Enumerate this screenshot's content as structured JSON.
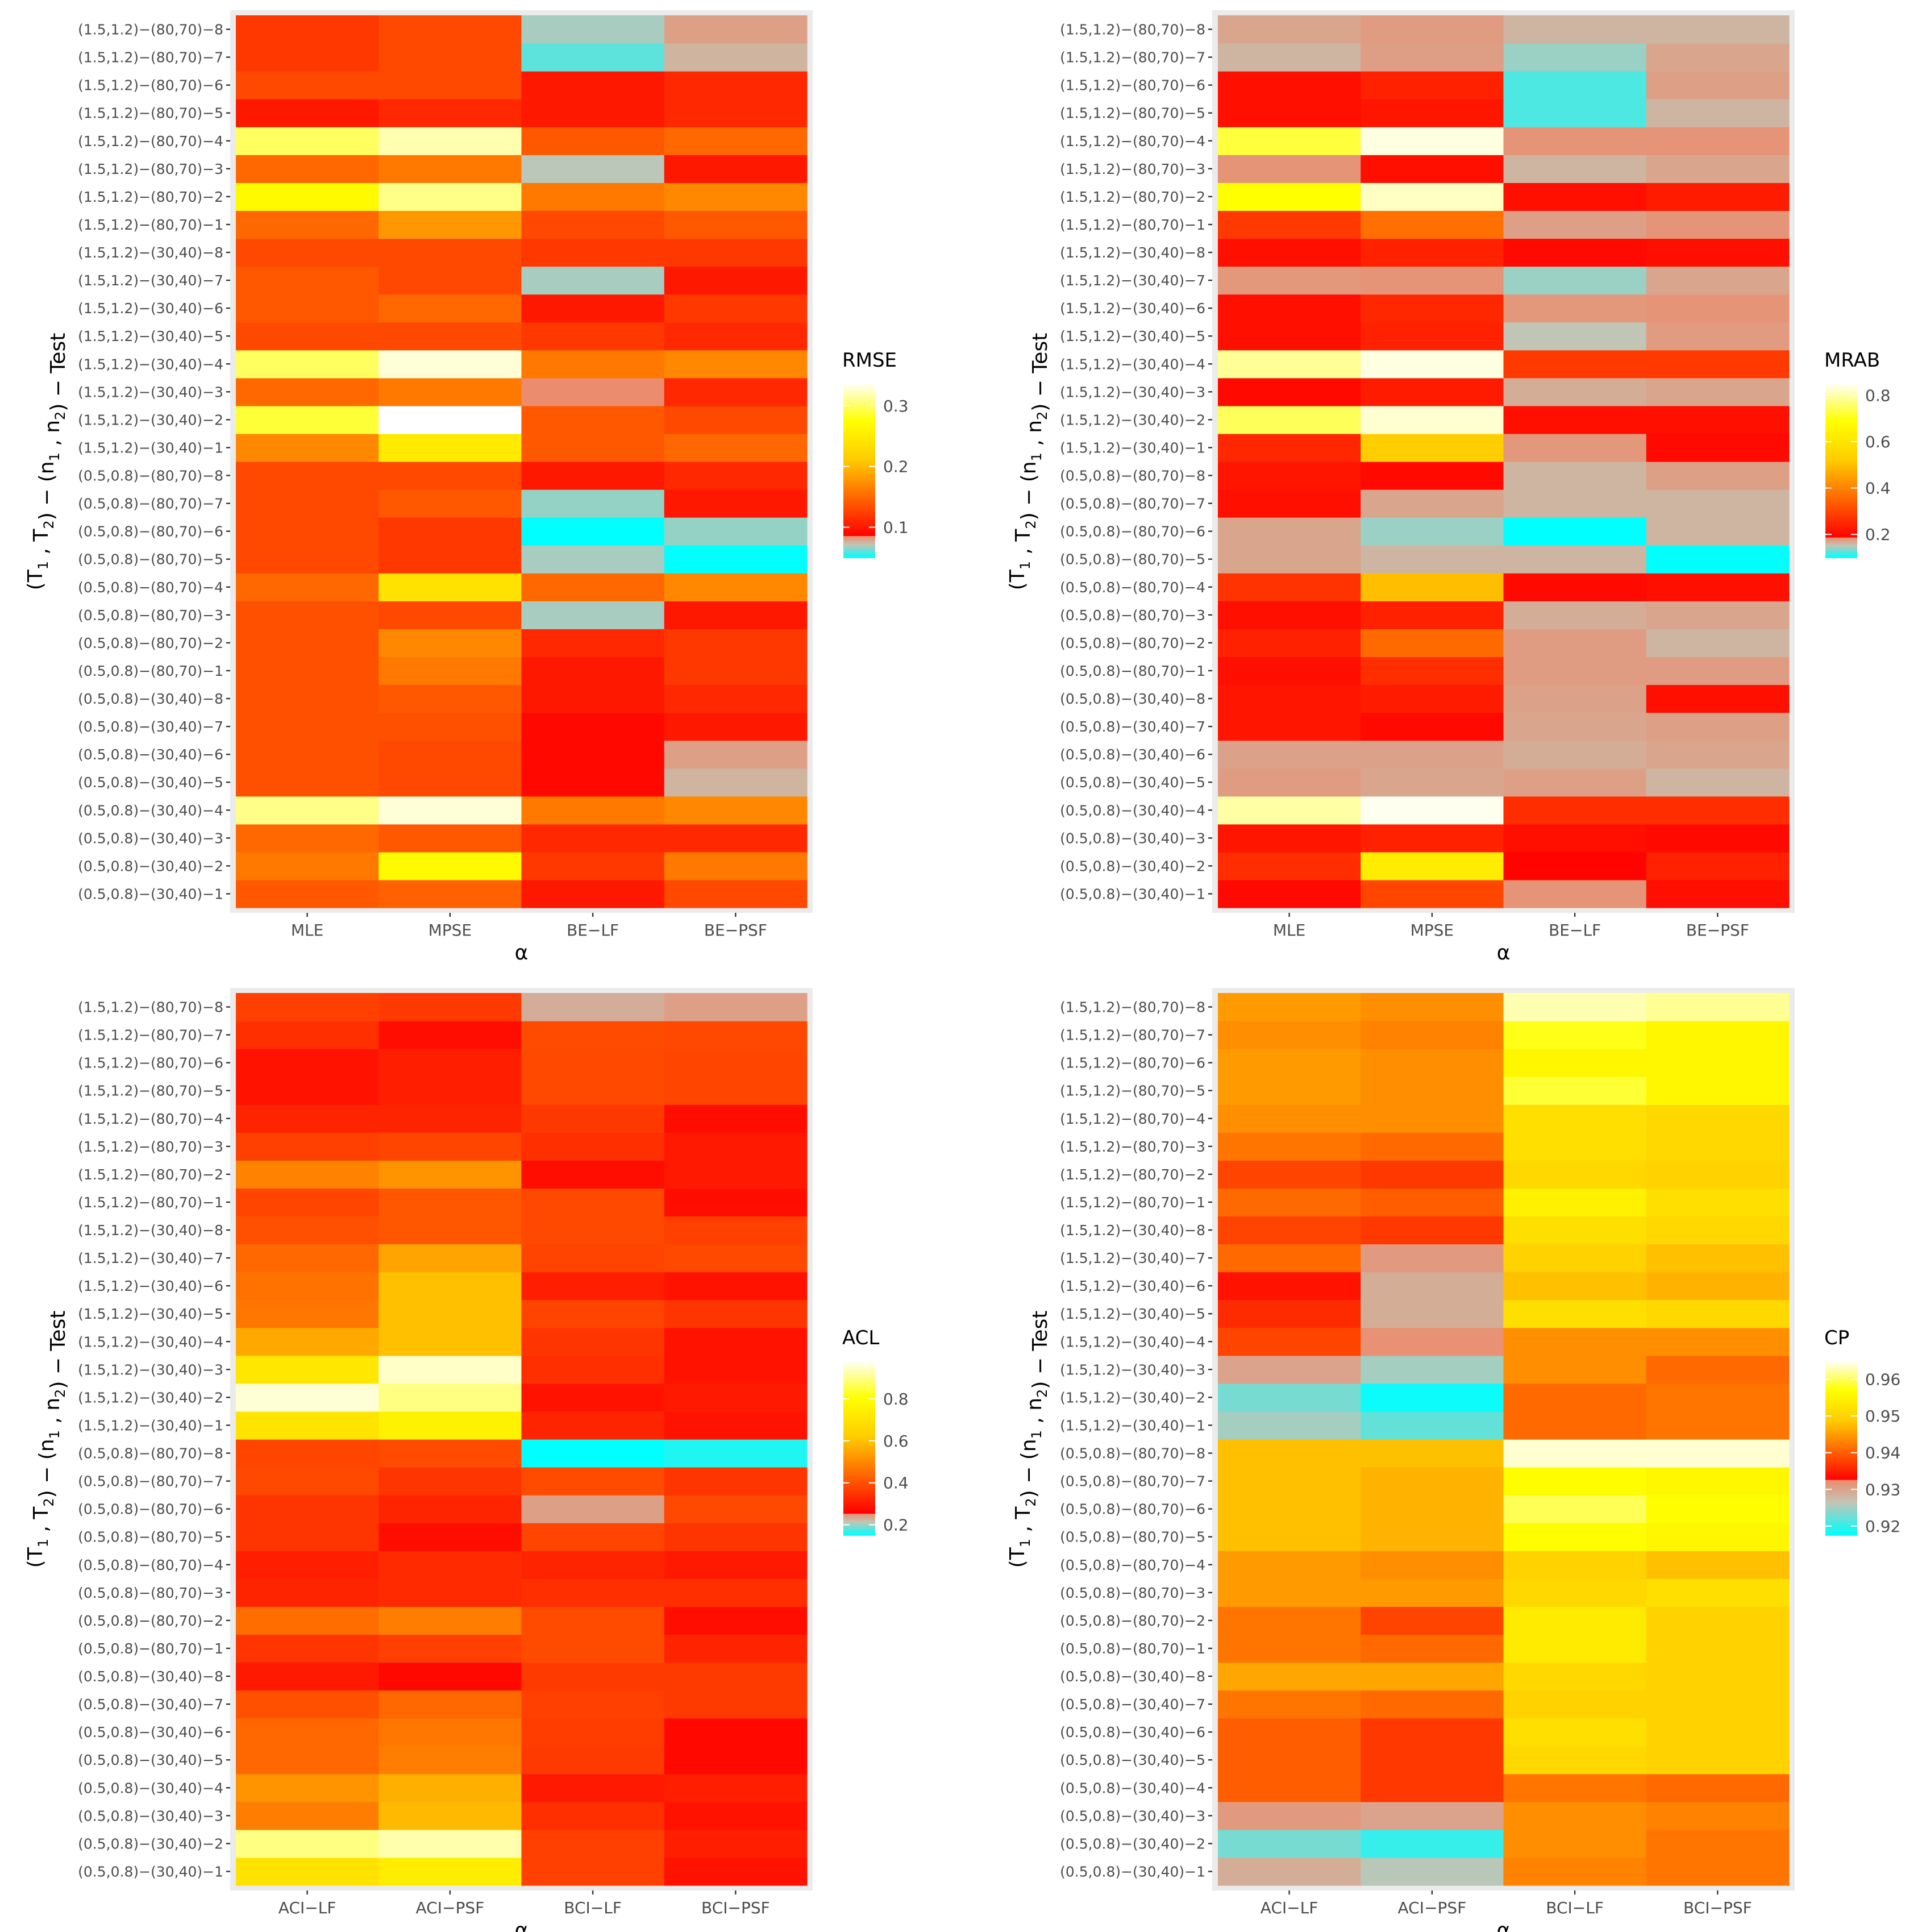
{
  "rows": [
    "(0.5,0.8)−(30,40)−1",
    "(0.5,0.8)−(30,40)−2",
    "(0.5,0.8)−(30,40)−3",
    "(0.5,0.8)−(30,40)−4",
    "(0.5,0.8)−(30,40)−5",
    "(0.5,0.8)−(30,40)−6",
    "(0.5,0.8)−(30,40)−7",
    "(0.5,0.8)−(30,40)−8",
    "(0.5,0.8)−(80,70)−1",
    "(0.5,0.8)−(80,70)−2",
    "(0.5,0.8)−(80,70)−3",
    "(0.5,0.8)−(80,70)−4",
    "(0.5,0.8)−(80,70)−5",
    "(0.5,0.8)−(80,70)−6",
    "(0.5,0.8)−(80,70)−7",
    "(0.5,0.8)−(80,70)−8",
    "(1.5,1.2)−(30,40)−1",
    "(1.5,1.2)−(30,40)−2",
    "(1.5,1.2)−(30,40)−3",
    "(1.5,1.2)−(30,40)−4",
    "(1.5,1.2)−(30,40)−5",
    "(1.5,1.2)−(30,40)−6",
    "(1.5,1.2)−(30,40)−7",
    "(1.5,1.2)−(30,40)−8",
    "(1.5,1.2)−(80,70)−1",
    "(1.5,1.2)−(80,70)−2",
    "(1.5,1.2)−(80,70)−3",
    "(1.5,1.2)−(80,70)−4",
    "(1.5,1.2)−(80,70)−5",
    "(1.5,1.2)−(80,70)−6",
    "(1.5,1.2)−(80,70)−7",
    "(1.5,1.2)−(80,70)−8"
  ],
  "y_axis_parts": {
    "T1": "T",
    "T2": "T",
    "n1": "n",
    "n2": "n",
    "sub1": "1",
    "sub2": "2",
    "open": "(",
    "comma": " , ",
    "close": ")",
    "dash": " − ",
    "test": " − Test"
  },
  "x_axis_title": "α",
  "colorscale": {
    "stops": [
      "#ff0000",
      "#ff6600",
      "#ffcc00",
      "#ffff00",
      "#ffffff"
    ],
    "low_stops": [
      "#00ffff",
      "#ff0000"
    ]
  },
  "chart_data": [
    {
      "type": "heatmap",
      "legend_title": "RMSE",
      "columns": [
        "MLE",
        "MPSE",
        "BE−LF",
        "BE−PSF"
      ],
      "range": [
        0.05,
        0.34
      ],
      "low_cut": 0.085,
      "legend_ticks": [
        {
          "value": 0.1,
          "label": "0.1"
        },
        {
          "value": 0.2,
          "label": "0.2"
        },
        {
          "value": 0.3,
          "label": "0.3"
        }
      ],
      "values": [
        [
          0.14,
          0.145,
          0.1,
          0.13
        ],
        [
          0.16,
          0.27,
          0.12,
          0.16
        ],
        [
          0.15,
          0.14,
          0.11,
          0.11
        ],
        [
          0.31,
          0.33,
          0.16,
          0.17
        ],
        [
          0.135,
          0.13,
          0.09,
          0.075
        ],
        [
          0.135,
          0.13,
          0.09,
          0.08
        ],
        [
          0.135,
          0.135,
          0.09,
          0.1
        ],
        [
          0.135,
          0.14,
          0.1,
          0.11
        ],
        [
          0.135,
          0.16,
          0.1,
          0.12
        ],
        [
          0.135,
          0.17,
          0.11,
          0.12
        ],
        [
          0.135,
          0.13,
          0.068,
          0.1
        ],
        [
          0.15,
          0.24,
          0.15,
          0.17
        ],
        [
          0.13,
          0.12,
          0.068,
          0.045
        ],
        [
          0.13,
          0.12,
          0.045,
          0.066
        ],
        [
          0.13,
          0.14,
          0.066,
          0.1
        ],
        [
          0.13,
          0.13,
          0.1,
          0.11
        ],
        [
          0.17,
          0.25,
          0.14,
          0.15
        ],
        [
          0.29,
          0.34,
          0.14,
          0.13
        ],
        [
          0.15,
          0.16,
          0.085,
          0.11
        ],
        [
          0.3,
          0.33,
          0.16,
          0.17
        ],
        [
          0.13,
          0.13,
          0.12,
          0.11
        ],
        [
          0.14,
          0.15,
          0.1,
          0.12
        ],
        [
          0.14,
          0.13,
          0.068,
          0.1
        ],
        [
          0.13,
          0.13,
          0.12,
          0.12
        ],
        [
          0.15,
          0.18,
          0.13,
          0.14
        ],
        [
          0.27,
          0.31,
          0.16,
          0.17
        ],
        [
          0.15,
          0.16,
          0.07,
          0.1
        ],
        [
          0.3,
          0.32,
          0.14,
          0.15
        ],
        [
          0.1,
          0.11,
          0.1,
          0.11
        ],
        [
          0.13,
          0.13,
          0.1,
          0.11
        ],
        [
          0.12,
          0.13,
          0.06,
          0.075
        ],
        [
          0.12,
          0.13,
          0.068,
          0.08
        ]
      ]
    },
    {
      "type": "heatmap",
      "legend_title": "MRAB",
      "columns": [
        "MLE",
        "MPSE",
        "BE−LF",
        "BE−PSF"
      ],
      "range": [
        0.1,
        0.86
      ],
      "low_cut": 0.185,
      "legend_ticks": [
        {
          "value": 0.2,
          "label": "0.2"
        },
        {
          "value": 0.4,
          "label": "0.4"
        },
        {
          "value": 0.6,
          "label": "0.6"
        },
        {
          "value": 0.8,
          "label": "0.8"
        }
      ],
      "values": [
        [
          0.2,
          0.3,
          0.18,
          0.21
        ],
        [
          0.26,
          0.63,
          0.19,
          0.24
        ],
        [
          0.22,
          0.24,
          0.21,
          0.2
        ],
        [
          0.8,
          0.85,
          0.26,
          0.26
        ],
        [
          0.175,
          0.17,
          0.173,
          0.16
        ],
        [
          0.172,
          0.172,
          0.165,
          0.17
        ],
        [
          0.22,
          0.2,
          0.17,
          0.173
        ],
        [
          0.22,
          0.23,
          0.172,
          0.21
        ],
        [
          0.21,
          0.26,
          0.175,
          0.175
        ],
        [
          0.24,
          0.36,
          0.175,
          0.16
        ],
        [
          0.21,
          0.24,
          0.165,
          0.17
        ],
        [
          0.27,
          0.5,
          0.2,
          0.21
        ],
        [
          0.17,
          0.16,
          0.16,
          0.1
        ],
        [
          0.17,
          0.14,
          0.1,
          0.16
        ],
        [
          0.21,
          0.17,
          0.16,
          0.16
        ],
        [
          0.22,
          0.2,
          0.16,
          0.173
        ],
        [
          0.25,
          0.53,
          0.178,
          0.2
        ],
        [
          0.75,
          0.83,
          0.21,
          0.21
        ],
        [
          0.2,
          0.23,
          0.165,
          0.17
        ],
        [
          0.79,
          0.84,
          0.28,
          0.28
        ],
        [
          0.21,
          0.24,
          0.15,
          0.176
        ],
        [
          0.21,
          0.25,
          0.178,
          0.18
        ],
        [
          0.178,
          0.18,
          0.14,
          0.17
        ],
        [
          0.21,
          0.24,
          0.2,
          0.21
        ],
        [
          0.28,
          0.37,
          0.173,
          0.18
        ],
        [
          0.69,
          0.82,
          0.21,
          0.23
        ],
        [
          0.18,
          0.21,
          0.16,
          0.17
        ],
        [
          0.73,
          0.84,
          0.18,
          0.18
        ],
        [
          0.21,
          0.22,
          0.12,
          0.16
        ],
        [
          0.21,
          0.24,
          0.12,
          0.173
        ],
        [
          0.16,
          0.174,
          0.14,
          0.17
        ],
        [
          0.17,
          0.176,
          0.16,
          0.16
        ]
      ]
    },
    {
      "type": "heatmap",
      "legend_title": "ACL",
      "columns": [
        "ACI−LF",
        "ACI−PSF",
        "BCI−LF",
        "BCI−PSF"
      ],
      "range": [
        0.15,
        0.99
      ],
      "low_cut": 0.255,
      "legend_ticks": [
        {
          "value": 0.2,
          "label": "0.2"
        },
        {
          "value": 0.4,
          "label": "0.4"
        },
        {
          "value": 0.6,
          "label": "0.6"
        },
        {
          "value": 0.8,
          "label": "0.8"
        }
      ],
      "values": [
        [
          0.7,
          0.74,
          0.37,
          0.29
        ],
        [
          0.9,
          0.93,
          0.37,
          0.31
        ],
        [
          0.48,
          0.59,
          0.34,
          0.29
        ],
        [
          0.52,
          0.57,
          0.3,
          0.31
        ],
        [
          0.44,
          0.48,
          0.36,
          0.27
        ],
        [
          0.44,
          0.47,
          0.365,
          0.27
        ],
        [
          0.4,
          0.44,
          0.37,
          0.36
        ],
        [
          0.3,
          0.27,
          0.36,
          0.36
        ],
        [
          0.35,
          0.37,
          0.39,
          0.32
        ],
        [
          0.45,
          0.48,
          0.39,
          0.28
        ],
        [
          0.32,
          0.33,
          0.34,
          0.34
        ],
        [
          0.31,
          0.33,
          0.32,
          0.3
        ],
        [
          0.35,
          0.28,
          0.38,
          0.35
        ],
        [
          0.35,
          0.32,
          0.24,
          0.385
        ],
        [
          0.385,
          0.35,
          0.39,
          0.35
        ],
        [
          0.38,
          0.39,
          0.15,
          0.16
        ],
        [
          0.71,
          0.76,
          0.32,
          0.29
        ],
        [
          0.96,
          0.9,
          0.29,
          0.3
        ],
        [
          0.72,
          0.95,
          0.34,
          0.29
        ],
        [
          0.56,
          0.6,
          0.35,
          0.29
        ],
        [
          0.47,
          0.6,
          0.375,
          0.35
        ],
        [
          0.46,
          0.6,
          0.31,
          0.29
        ],
        [
          0.44,
          0.55,
          0.375,
          0.385
        ],
        [
          0.4,
          0.41,
          0.385,
          0.37
        ],
        [
          0.38,
          0.41,
          0.385,
          0.28
        ],
        [
          0.49,
          0.52,
          0.28,
          0.3
        ],
        [
          0.37,
          0.38,
          0.34,
          0.3
        ],
        [
          0.32,
          0.32,
          0.355,
          0.28
        ],
        [
          0.29,
          0.31,
          0.385,
          0.38
        ],
        [
          0.29,
          0.31,
          0.385,
          0.38
        ],
        [
          0.34,
          0.28,
          0.39,
          0.385
        ],
        [
          0.37,
          0.36,
          0.23,
          0.24
        ]
      ]
    },
    {
      "type": "heatmap",
      "legend_title": "CP",
      "columns": [
        "ACI−LF",
        "ACI−PSF",
        "BCI−LF",
        "BCI−PSF"
      ],
      "range": [
        0.9175,
        0.9655
      ],
      "low_cut": 0.9325,
      "legend_ticks": [
        {
          "value": 0.92,
          "label": "0.92"
        },
        {
          "value": 0.93,
          "label": "0.93"
        },
        {
          "value": 0.94,
          "label": "0.94"
        },
        {
          "value": 0.95,
          "label": "0.95"
        },
        {
          "value": 0.96,
          "label": "0.96"
        }
      ],
      "values": [
        [
          0.929,
          0.926,
          0.943,
          0.942
        ],
        [
          0.923,
          0.92,
          0.944,
          0.942
        ],
        [
          0.931,
          0.93,
          0.944,
          0.943
        ],
        [
          0.94,
          0.937,
          0.942,
          0.941
        ],
        [
          0.94,
          0.937,
          0.951,
          0.95
        ],
        [
          0.94,
          0.937,
          0.952,
          0.95
        ],
        [
          0.942,
          0.941,
          0.95,
          0.95
        ],
        [
          0.946,
          0.946,
          0.951,
          0.95
        ],
        [
          0.942,
          0.941,
          0.954,
          0.95
        ],
        [
          0.942,
          0.938,
          0.954,
          0.95
        ],
        [
          0.945,
          0.945,
          0.951,
          0.952
        ],
        [
          0.945,
          0.944,
          0.95,
          0.948
        ],
        [
          0.948,
          0.947,
          0.957,
          0.956
        ],
        [
          0.948,
          0.947,
          0.96,
          0.957
        ],
        [
          0.948,
          0.947,
          0.957,
          0.956
        ],
        [
          0.948,
          0.948,
          0.964,
          0.964
        ],
        [
          0.925,
          0.922,
          0.941,
          0.942
        ],
        [
          0.923,
          0.918,
          0.941,
          0.942
        ],
        [
          0.93,
          0.925,
          0.944,
          0.941
        ],
        [
          0.938,
          0.932,
          0.944,
          0.944
        ],
        [
          0.936,
          0.929,
          0.952,
          0.951
        ],
        [
          0.934,
          0.929,
          0.948,
          0.947
        ],
        [
          0.941,
          0.931,
          0.95,
          0.948
        ],
        [
          0.938,
          0.937,
          0.952,
          0.951
        ],
        [
          0.941,
          0.94,
          0.955,
          0.952
        ],
        [
          0.938,
          0.937,
          0.951,
          0.95
        ],
        [
          0.942,
          0.941,
          0.952,
          0.951
        ],
        [
          0.944,
          0.944,
          0.952,
          0.951
        ],
        [
          0.945,
          0.944,
          0.959,
          0.956
        ],
        [
          0.945,
          0.944,
          0.956,
          0.956
        ],
        [
          0.944,
          0.943,
          0.958,
          0.956
        ],
        [
          0.945,
          0.944,
          0.963,
          0.962
        ]
      ]
    }
  ]
}
